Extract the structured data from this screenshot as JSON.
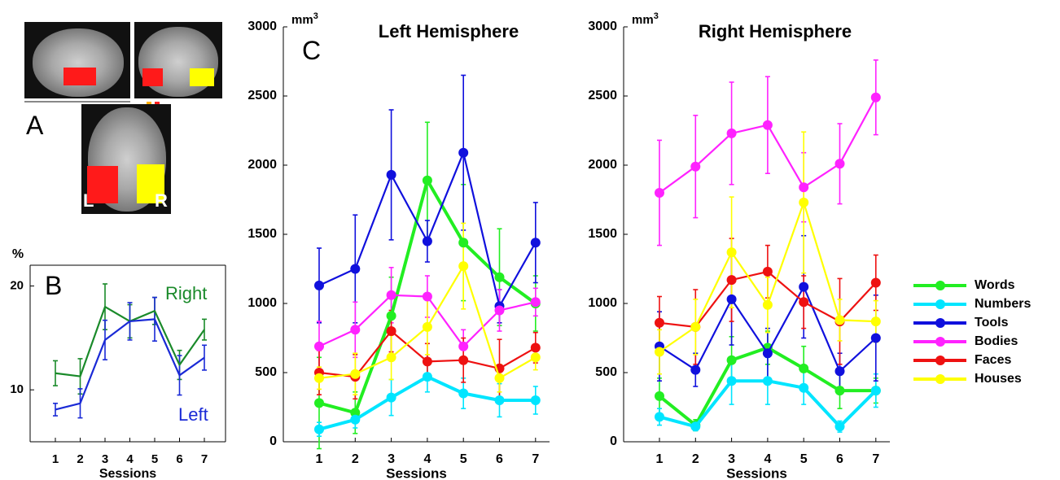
{
  "panel_labels": {
    "a": "A",
    "b": "B",
    "c": "C"
  },
  "brain": {
    "left_label": "L",
    "right_label": "R",
    "colors": {
      "left_roi": "#ff1a1a",
      "right_roi": "#ffff00"
    }
  },
  "colors": {
    "Words": "#22ee22",
    "Numbers": "#00e5ff",
    "Tools": "#1010dd",
    "Bodies": "#ff22ff",
    "Faces": "#ee1111",
    "Houses": "#ffff00",
    "Right": "#1a8a2a",
    "Left": "#1a2ad6"
  },
  "chart_data": [
    {
      "type": "line",
      "panel": "B",
      "ylabel": "%",
      "xlabel": "Sessions",
      "x": [
        1,
        2,
        3,
        4,
        5,
        6,
        7
      ],
      "ylim": [
        5,
        22
      ],
      "yticks": [
        10,
        20
      ],
      "series": [
        {
          "name": "Right",
          "values": [
            11.6,
            11.3,
            18.0,
            16.6,
            17.6,
            12.4,
            15.8
          ],
          "err": [
            1.2,
            1.7,
            2.2,
            1.6,
            1.3,
            1.4,
            1.0
          ]
        },
        {
          "name": "Left",
          "values": [
            8.1,
            8.7,
            14.8,
            16.6,
            16.8,
            11.4,
            13.1
          ],
          "err": [
            0.6,
            1.4,
            1.9,
            1.8,
            2.1,
            1.9,
            1.2
          ]
        }
      ]
    },
    {
      "type": "line",
      "panel": "C",
      "title": "Left Hemisphere",
      "ylabel": "mm3",
      "xlabel": "Sessions",
      "x": [
        1,
        2,
        3,
        4,
        5,
        6,
        7
      ],
      "ylim": [
        0,
        3000
      ],
      "yticks": [
        0,
        500,
        1000,
        1500,
        2000,
        2500,
        3000
      ],
      "series": [
        {
          "name": "Words",
          "values": [
            280,
            210,
            910,
            1890,
            1440,
            1190,
            1000
          ],
          "err": [
            330,
            150,
            280,
            420,
            420,
            350,
            200
          ]
        },
        {
          "name": "Numbers",
          "values": [
            90,
            160,
            320,
            470,
            350,
            300,
            300
          ],
          "err": [
            50,
            60,
            130,
            110,
            110,
            120,
            100
          ]
        },
        {
          "name": "Tools",
          "values": [
            1130,
            1250,
            1930,
            1450,
            2090,
            980,
            1440
          ],
          "err": [
            270,
            390,
            470,
            150,
            560,
            120,
            290
          ]
        },
        {
          "name": "Bodies",
          "values": [
            690,
            810,
            1060,
            1050,
            690,
            950,
            1010
          ],
          "err": [
            180,
            200,
            200,
            150,
            120,
            150,
            100
          ]
        },
        {
          "name": "Faces",
          "values": [
            500,
            470,
            800,
            580,
            590,
            530,
            680
          ],
          "err": [
            160,
            160,
            150,
            130,
            160,
            210,
            110
          ]
        },
        {
          "name": "Houses",
          "values": [
            460,
            490,
            610,
            830,
            1270,
            460,
            610
          ],
          "err": [
            80,
            150,
            160,
            200,
            310,
            100,
            90
          ]
        }
      ]
    },
    {
      "type": "line",
      "panel": "C",
      "title": "Right Hemisphere",
      "ylabel": "mm3",
      "xlabel": "Sessions",
      "x": [
        1,
        2,
        3,
        4,
        5,
        6,
        7
      ],
      "ylim": [
        0,
        3000
      ],
      "yticks": [
        0,
        500,
        1000,
        1500,
        2000,
        2500,
        3000
      ],
      "series": [
        {
          "name": "Words",
          "values": [
            330,
            120,
            590,
            680,
            530,
            370,
            370
          ],
          "err": [
            130,
            40,
            170,
            120,
            160,
            130,
            90
          ]
        },
        {
          "name": "Numbers",
          "values": [
            180,
            110,
            440,
            440,
            390,
            110,
            370
          ],
          "err": [
            60,
            30,
            170,
            170,
            120,
            40,
            120
          ]
        },
        {
          "name": "Tools",
          "values": [
            690,
            520,
            1030,
            640,
            1120,
            510,
            750
          ],
          "err": [
            250,
            120,
            330,
            180,
            370,
            130,
            310
          ]
        },
        {
          "name": "Bodies",
          "values": [
            1800,
            1990,
            2230,
            2290,
            1840,
            2010,
            2490
          ],
          "err": [
            380,
            370,
            370,
            350,
            250,
            290,
            270
          ]
        },
        {
          "name": "Faces",
          "values": [
            860,
            830,
            1170,
            1230,
            1010,
            870,
            1150
          ],
          "err": [
            190,
            270,
            300,
            190,
            190,
            310,
            200
          ]
        },
        {
          "name": "Houses",
          "values": [
            650,
            830,
            1370,
            990,
            1730,
            880,
            870
          ],
          "err": [
            160,
            200,
            400,
            200,
            510,
            150,
            150
          ]
        }
      ],
      "legend": {
        "position": "right",
        "entries": [
          "Words",
          "Numbers",
          "Tools",
          "Bodies",
          "Faces",
          "Houses"
        ]
      }
    }
  ]
}
